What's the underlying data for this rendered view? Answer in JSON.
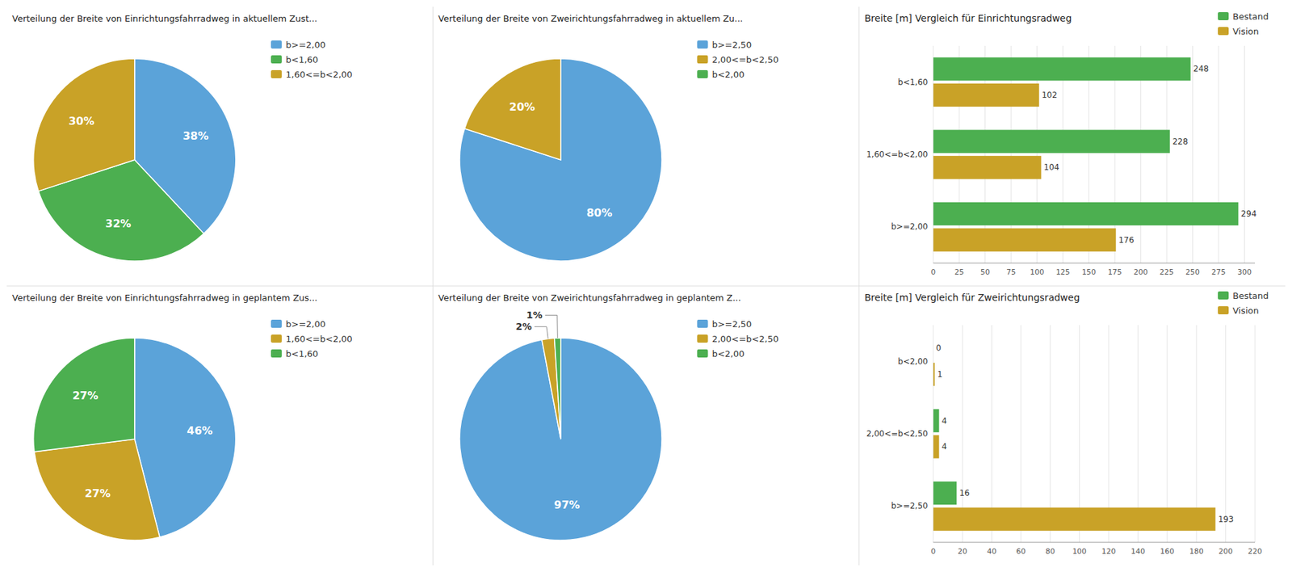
{
  "chart_data": [
    {
      "type": "pie",
      "title": "Verteilung der Breite von Einrichtungsfahrradweg in aktuellem Zust...",
      "values": [
        38,
        32,
        30
      ],
      "value_labels": [
        "38%",
        "32%",
        "30%"
      ],
      "colors": [
        "#5ba3d9",
        "#4caf50",
        "#c9a227"
      ],
      "data_labels": true,
      "legend": "upper right",
      "legend_entries": [
        {
          "label": "b>=2,00",
          "color": "#5ba3d9"
        },
        {
          "label": "b<1,60",
          "color": "#4caf50"
        },
        {
          "label": "1,60<=b<2,00",
          "color": "#c9a227"
        }
      ]
    },
    {
      "type": "pie",
      "title": "Verteilung der Breite von Zweirichtungsfahrradweg in aktuellem Zu...",
      "values": [
        80,
        20
      ],
      "value_labels": [
        "80%",
        "20%"
      ],
      "colors": [
        "#5ba3d9",
        "#c9a227"
      ],
      "data_labels": true,
      "legend": "upper right",
      "legend_entries": [
        {
          "label": "b>=2,50",
          "color": "#5ba3d9"
        },
        {
          "label": "2,00<=b<2,50",
          "color": "#c9a227"
        },
        {
          "label": "b<2,00",
          "color": "#4caf50"
        }
      ]
    },
    {
      "type": "bar",
      "orientation": "horizontal",
      "title": "Breite [m] Vergleich für Einrichtungsradweg",
      "categories": [
        "b<1,60",
        "1,60<=b<2,00",
        "b>=2,00"
      ],
      "series": [
        {
          "name": "Bestand",
          "color": "#4caf50",
          "values": [
            248,
            228,
            294
          ]
        },
        {
          "name": "Vision",
          "color": "#c9a227",
          "values": [
            102,
            104,
            176
          ]
        }
      ],
      "xlim": [
        0,
        310
      ],
      "xticks": [
        0,
        25,
        50,
        75,
        100,
        125,
        150,
        175,
        200,
        225,
        250,
        275,
        300
      ],
      "grid": true,
      "data_labels": true,
      "legend": "upper right"
    },
    {
      "type": "pie",
      "title": "Verteilung der Breite von Einrichtungsfahrradweg in geplantem Zus...",
      "values": [
        46,
        27,
        27
      ],
      "value_labels": [
        "46%",
        "27%",
        "27%"
      ],
      "colors": [
        "#5ba3d9",
        "#c9a227",
        "#4caf50"
      ],
      "data_labels": true,
      "legend": "upper right",
      "legend_entries": [
        {
          "label": "b>=2,00",
          "color": "#5ba3d9"
        },
        {
          "label": "1,60<=b<2,00",
          "color": "#c9a227"
        },
        {
          "label": "b<1,60",
          "color": "#4caf50"
        }
      ]
    },
    {
      "type": "pie",
      "title": "Verteilung der Breite von Zweirichtungsfahrradweg in geplantem Z...",
      "values": [
        97,
        2,
        1
      ],
      "value_labels": [
        "97%",
        "2%",
        "1%"
      ],
      "colors": [
        "#5ba3d9",
        "#c9a227",
        "#4caf50"
      ],
      "data_labels": true,
      "legend": "upper right",
      "legend_entries": [
        {
          "label": "b>=2,50",
          "color": "#5ba3d9"
        },
        {
          "label": "2,00<=b<2,50",
          "color": "#c9a227"
        },
        {
          "label": "b<2,00",
          "color": "#4caf50"
        }
      ]
    },
    {
      "type": "bar",
      "orientation": "horizontal",
      "title": "Breite [m] Vergleich für Zweirichtungsradweg",
      "categories": [
        "b<2,00",
        "2,00<=b<2,50",
        "b>=2,50"
      ],
      "series": [
        {
          "name": "Bestand",
          "color": "#4caf50",
          "values": [
            0,
            4,
            16
          ]
        },
        {
          "name": "Vision",
          "color": "#c9a227",
          "values": [
            1,
            4,
            193
          ]
        }
      ],
      "xlim": [
        0,
        220
      ],
      "xticks": [
        0,
        20,
        40,
        60,
        80,
        100,
        120,
        140,
        160,
        180,
        200,
        220
      ],
      "grid": true,
      "data_labels": true,
      "legend": "upper right"
    }
  ]
}
